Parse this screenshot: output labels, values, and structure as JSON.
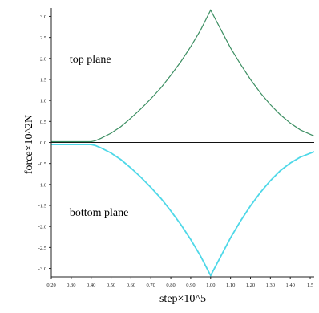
{
  "colors": {
    "top_series": "#3d8f63",
    "bottom_series": "#4fd8e8",
    "axis": "#222222",
    "zero_line": "#111111"
  },
  "chart_data": {
    "type": "line",
    "title": "",
    "xlabel": "step×10^5",
    "ylabel": "force×10^2N",
    "xlim": [
      0.2,
      1.52
    ],
    "ylim": [
      -3.2,
      3.2
    ],
    "grid": false,
    "legend": "none",
    "x_ticks": [
      "0.20",
      "0.30",
      "0.40",
      "0.50",
      "0.60",
      "0.70",
      "0.80",
      "0.90",
      "1.00",
      "1.10",
      "1.20",
      "1.30",
      "1.40",
      "1.5"
    ],
    "x_tick_values": [
      0.2,
      0.3,
      0.4,
      0.5,
      0.6,
      0.7,
      0.8,
      0.9,
      1.0,
      1.1,
      1.2,
      1.3,
      1.4,
      1.5
    ],
    "y_ticks": [
      "3.0",
      "2.5",
      "2.0",
      "1.5",
      "1.0",
      "0.5",
      "0.0",
      "-0.5",
      "-1.0",
      "-1.5",
      "-2.0",
      "-2.5",
      "-3.0"
    ],
    "y_tick_values": [
      3.0,
      2.5,
      2.0,
      1.5,
      1.0,
      0.5,
      0.0,
      -0.5,
      -1.0,
      -1.5,
      -2.0,
      -2.5,
      -3.0
    ],
    "annotations": [
      {
        "text": "top plane",
        "x": 0.3,
        "y": 1.9
      },
      {
        "text": "bottom plane",
        "x": 0.3,
        "y": -1.75
      }
    ],
    "series": [
      {
        "color": "#3d8f63",
        "x": [
          0.2,
          0.3,
          0.4,
          0.42,
          0.45,
          0.5,
          0.55,
          0.6,
          0.65,
          0.7,
          0.75,
          0.8,
          0.85,
          0.9,
          0.95,
          1.0,
          1.05,
          1.1,
          1.15,
          1.2,
          1.25,
          1.3,
          1.35,
          1.4,
          1.45,
          1.52
        ],
        "y": [
          0.02,
          0.02,
          0.02,
          0.04,
          0.1,
          0.22,
          0.38,
          0.58,
          0.8,
          1.04,
          1.3,
          1.6,
          1.92,
          2.28,
          2.68,
          3.15,
          2.7,
          2.25,
          1.86,
          1.5,
          1.18,
          0.9,
          0.66,
          0.46,
          0.3,
          0.15
        ]
      },
      {
        "color": "#4fd8e8",
        "x": [
          0.2,
          0.3,
          0.4,
          0.42,
          0.45,
          0.5,
          0.55,
          0.6,
          0.65,
          0.7,
          0.75,
          0.8,
          0.85,
          0.9,
          0.95,
          1.0,
          1.05,
          1.1,
          1.15,
          1.2,
          1.25,
          1.3,
          1.35,
          1.4,
          1.45,
          1.52
        ],
        "y": [
          -0.05,
          -0.05,
          -0.05,
          -0.07,
          -0.13,
          -0.25,
          -0.41,
          -0.61,
          -0.83,
          -1.07,
          -1.33,
          -1.63,
          -1.95,
          -2.31,
          -2.71,
          -3.17,
          -2.72,
          -2.27,
          -1.87,
          -1.51,
          -1.19,
          -0.91,
          -0.67,
          -0.49,
          -0.35,
          -0.22
        ]
      }
    ]
  }
}
